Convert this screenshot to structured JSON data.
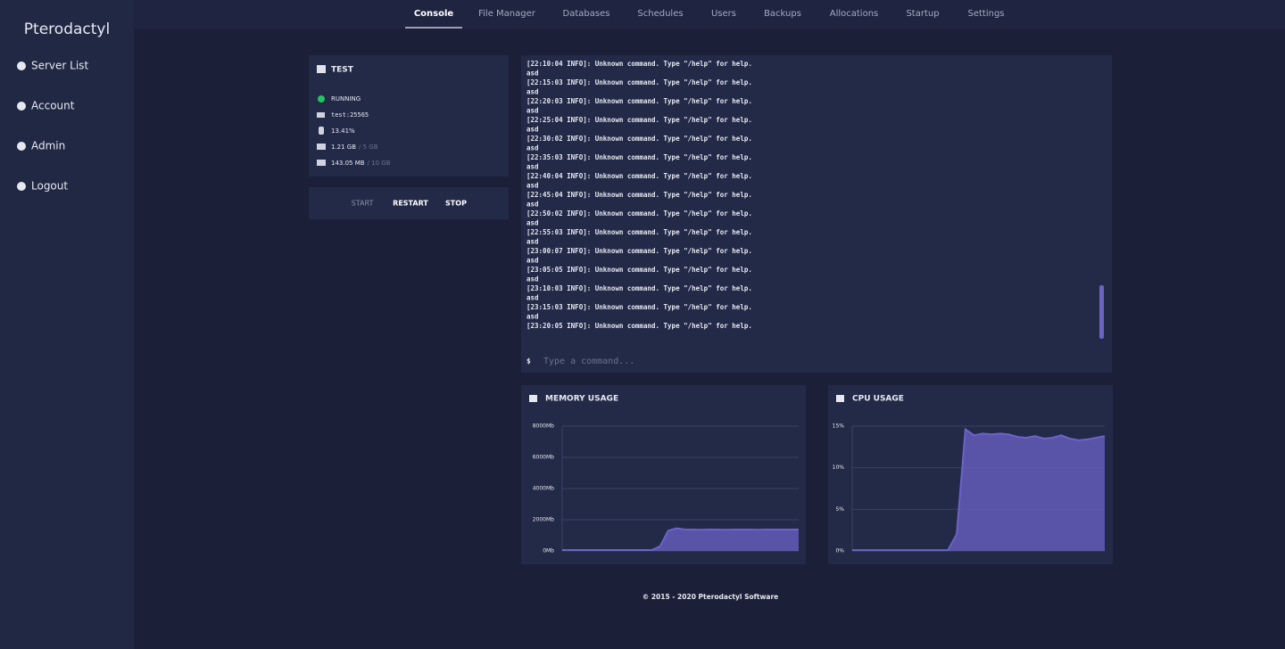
{
  "sidebar": {
    "brand": "Pterodactyl",
    "items": [
      "Server List",
      "Account",
      "Admin",
      "Logout"
    ]
  },
  "tabs": [
    "Console",
    "File Manager",
    "Databases",
    "Schedules",
    "Users",
    "Backups",
    "Allocations",
    "Startup",
    "Settings"
  ],
  "server": {
    "name": "TEST",
    "status": "RUNNING",
    "address": "test:25565",
    "cpu": "13.41%",
    "memory": "1.21 GB",
    "memory_limit": "/ 5 GB",
    "disk": "143.05 MB",
    "disk_limit": "/ 10 GB"
  },
  "controls": [
    "START",
    "RESTART",
    "STOP"
  ],
  "console": {
    "lines": [
      "[22:10:04 INFO]: Unknown command. Type \"/help\" for help.",
      "asd",
      "[22:15:03 INFO]: Unknown command. Type \"/help\" for help.",
      "asd",
      "[22:20:03 INFO]: Unknown command. Type \"/help\" for help.",
      "asd",
      "[22:25:04 INFO]: Unknown command. Type \"/help\" for help.",
      "asd",
      "[22:30:02 INFO]: Unknown command. Type \"/help\" for help.",
      "asd",
      "[22:35:03 INFO]: Unknown command. Type \"/help\" for help.",
      "asd",
      "[22:40:04 INFO]: Unknown command. Type \"/help\" for help.",
      "asd",
      "[22:45:04 INFO]: Unknown command. Type \"/help\" for help.",
      "asd",
      "[22:50:02 INFO]: Unknown command. Type \"/help\" for help.",
      "asd",
      "[22:55:03 INFO]: Unknown command. Type \"/help\" for help.",
      "asd",
      "[23:00:07 INFO]: Unknown command. Type \"/help\" for help.",
      "asd",
      "[23:05:05 INFO]: Unknown command. Type \"/help\" for help.",
      "asd",
      "[23:10:03 INFO]: Unknown command. Type \"/help\" for help.",
      "asd",
      "[23:15:03 INFO]: Unknown command. Type \"/help\" for help.",
      "asd",
      "[23:20:05 INFO]: Unknown command. Type \"/help\" for help."
    ],
    "prompt": "$",
    "placeholder": "Type a command..."
  },
  "chart_data": [
    {
      "type": "area",
      "title": "MEMORY USAGE",
      "color": "#6c63c7",
      "values": [
        60,
        60,
        60,
        60,
        60,
        60,
        60,
        60,
        60,
        60,
        60,
        60,
        300,
        1300,
        1450,
        1380,
        1370,
        1360,
        1370,
        1370,
        1360,
        1370,
        1370,
        1370,
        1360,
        1370,
        1370,
        1370,
        1370,
        1370
      ],
      "ylim": [
        0,
        8000
      ],
      "yticks": [
        {
          "value": 0,
          "label": "0Mb"
        },
        {
          "value": 2000,
          "label": "2000Mb"
        },
        {
          "value": 4000,
          "label": "4000Mb"
        },
        {
          "value": 6000,
          "label": "6000Mb"
        },
        {
          "value": 8000,
          "label": "8000Mb"
        }
      ],
      "grid": true
    },
    {
      "type": "area",
      "title": "CPU USAGE",
      "color": "#6c63c7",
      "values": [
        0.1,
        0.1,
        0.1,
        0.1,
        0.1,
        0.1,
        0.1,
        0.1,
        0.1,
        0.1,
        0.1,
        0.1,
        2,
        14.6,
        13.9,
        14.1,
        14.0,
        14.1,
        14.0,
        13.7,
        13.6,
        13.8,
        13.5,
        13.6,
        13.9,
        13.5,
        13.3,
        13.4,
        13.6,
        13.8
      ],
      "ylim": [
        0,
        15
      ],
      "yticks": [
        {
          "value": 0,
          "label": "0%"
        },
        {
          "value": 5,
          "label": "5%"
        },
        {
          "value": 10,
          "label": "10%"
        },
        {
          "value": 15,
          "label": "15%"
        }
      ],
      "grid": true
    }
  ],
  "footer": "© 2015 - 2020 Pterodactyl Software"
}
